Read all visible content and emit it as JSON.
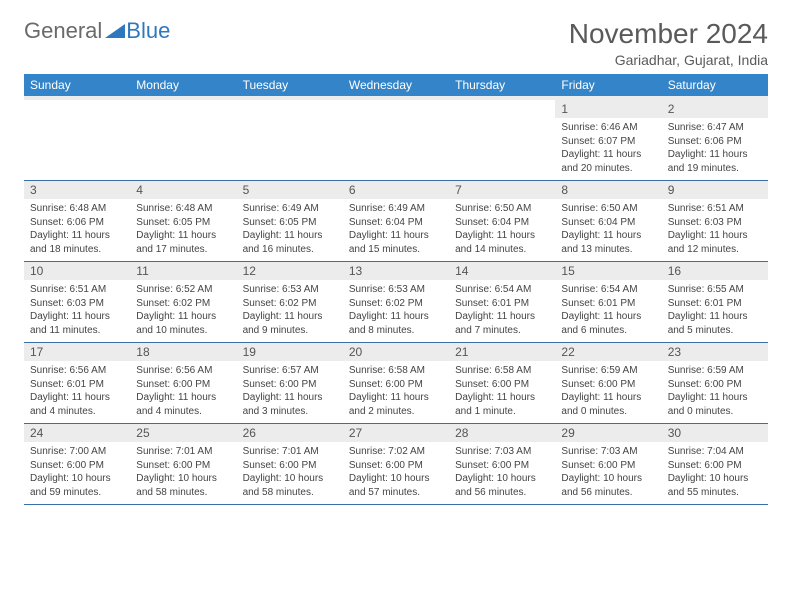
{
  "brand": {
    "part1": "General",
    "part2": "Blue"
  },
  "title": "November 2024",
  "location": "Gariadhar, Gujarat, India",
  "colors": {
    "header_bg": "#3384c8",
    "header_text": "#ffffff",
    "daynum_bg": "#ececec",
    "cell_border": "#3a6fa3",
    "text": "#444444",
    "title_text": "#5a5a5a",
    "logo_blue": "#2f78bd"
  },
  "fonts": {
    "title_pt": 28,
    "location_pt": 14,
    "dayhead_pt": 12,
    "cell_pt": 10
  },
  "day_headers": [
    "Sunday",
    "Monday",
    "Tuesday",
    "Wednesday",
    "Thursday",
    "Friday",
    "Saturday"
  ],
  "weeks": [
    [
      {
        "n": "",
        "sunrise": "",
        "sunset": "",
        "daylight": ""
      },
      {
        "n": "",
        "sunrise": "",
        "sunset": "",
        "daylight": ""
      },
      {
        "n": "",
        "sunrise": "",
        "sunset": "",
        "daylight": ""
      },
      {
        "n": "",
        "sunrise": "",
        "sunset": "",
        "daylight": ""
      },
      {
        "n": "",
        "sunrise": "",
        "sunset": "",
        "daylight": ""
      },
      {
        "n": "1",
        "sunrise": "Sunrise: 6:46 AM",
        "sunset": "Sunset: 6:07 PM",
        "daylight": "Daylight: 11 hours and 20 minutes."
      },
      {
        "n": "2",
        "sunrise": "Sunrise: 6:47 AM",
        "sunset": "Sunset: 6:06 PM",
        "daylight": "Daylight: 11 hours and 19 minutes."
      }
    ],
    [
      {
        "n": "3",
        "sunrise": "Sunrise: 6:48 AM",
        "sunset": "Sunset: 6:06 PM",
        "daylight": "Daylight: 11 hours and 18 minutes."
      },
      {
        "n": "4",
        "sunrise": "Sunrise: 6:48 AM",
        "sunset": "Sunset: 6:05 PM",
        "daylight": "Daylight: 11 hours and 17 minutes."
      },
      {
        "n": "5",
        "sunrise": "Sunrise: 6:49 AM",
        "sunset": "Sunset: 6:05 PM",
        "daylight": "Daylight: 11 hours and 16 minutes."
      },
      {
        "n": "6",
        "sunrise": "Sunrise: 6:49 AM",
        "sunset": "Sunset: 6:04 PM",
        "daylight": "Daylight: 11 hours and 15 minutes."
      },
      {
        "n": "7",
        "sunrise": "Sunrise: 6:50 AM",
        "sunset": "Sunset: 6:04 PM",
        "daylight": "Daylight: 11 hours and 14 minutes."
      },
      {
        "n": "8",
        "sunrise": "Sunrise: 6:50 AM",
        "sunset": "Sunset: 6:04 PM",
        "daylight": "Daylight: 11 hours and 13 minutes."
      },
      {
        "n": "9",
        "sunrise": "Sunrise: 6:51 AM",
        "sunset": "Sunset: 6:03 PM",
        "daylight": "Daylight: 11 hours and 12 minutes."
      }
    ],
    [
      {
        "n": "10",
        "sunrise": "Sunrise: 6:51 AM",
        "sunset": "Sunset: 6:03 PM",
        "daylight": "Daylight: 11 hours and 11 minutes."
      },
      {
        "n": "11",
        "sunrise": "Sunrise: 6:52 AM",
        "sunset": "Sunset: 6:02 PM",
        "daylight": "Daylight: 11 hours and 10 minutes."
      },
      {
        "n": "12",
        "sunrise": "Sunrise: 6:53 AM",
        "sunset": "Sunset: 6:02 PM",
        "daylight": "Daylight: 11 hours and 9 minutes."
      },
      {
        "n": "13",
        "sunrise": "Sunrise: 6:53 AM",
        "sunset": "Sunset: 6:02 PM",
        "daylight": "Daylight: 11 hours and 8 minutes."
      },
      {
        "n": "14",
        "sunrise": "Sunrise: 6:54 AM",
        "sunset": "Sunset: 6:01 PM",
        "daylight": "Daylight: 11 hours and 7 minutes."
      },
      {
        "n": "15",
        "sunrise": "Sunrise: 6:54 AM",
        "sunset": "Sunset: 6:01 PM",
        "daylight": "Daylight: 11 hours and 6 minutes."
      },
      {
        "n": "16",
        "sunrise": "Sunrise: 6:55 AM",
        "sunset": "Sunset: 6:01 PM",
        "daylight": "Daylight: 11 hours and 5 minutes."
      }
    ],
    [
      {
        "n": "17",
        "sunrise": "Sunrise: 6:56 AM",
        "sunset": "Sunset: 6:01 PM",
        "daylight": "Daylight: 11 hours and 4 minutes."
      },
      {
        "n": "18",
        "sunrise": "Sunrise: 6:56 AM",
        "sunset": "Sunset: 6:00 PM",
        "daylight": "Daylight: 11 hours and 4 minutes."
      },
      {
        "n": "19",
        "sunrise": "Sunrise: 6:57 AM",
        "sunset": "Sunset: 6:00 PM",
        "daylight": "Daylight: 11 hours and 3 minutes."
      },
      {
        "n": "20",
        "sunrise": "Sunrise: 6:58 AM",
        "sunset": "Sunset: 6:00 PM",
        "daylight": "Daylight: 11 hours and 2 minutes."
      },
      {
        "n": "21",
        "sunrise": "Sunrise: 6:58 AM",
        "sunset": "Sunset: 6:00 PM",
        "daylight": "Daylight: 11 hours and 1 minute."
      },
      {
        "n": "22",
        "sunrise": "Sunrise: 6:59 AM",
        "sunset": "Sunset: 6:00 PM",
        "daylight": "Daylight: 11 hours and 0 minutes."
      },
      {
        "n": "23",
        "sunrise": "Sunrise: 6:59 AM",
        "sunset": "Sunset: 6:00 PM",
        "daylight": "Daylight: 11 hours and 0 minutes."
      }
    ],
    [
      {
        "n": "24",
        "sunrise": "Sunrise: 7:00 AM",
        "sunset": "Sunset: 6:00 PM",
        "daylight": "Daylight: 10 hours and 59 minutes."
      },
      {
        "n": "25",
        "sunrise": "Sunrise: 7:01 AM",
        "sunset": "Sunset: 6:00 PM",
        "daylight": "Daylight: 10 hours and 58 minutes."
      },
      {
        "n": "26",
        "sunrise": "Sunrise: 7:01 AM",
        "sunset": "Sunset: 6:00 PM",
        "daylight": "Daylight: 10 hours and 58 minutes."
      },
      {
        "n": "27",
        "sunrise": "Sunrise: 7:02 AM",
        "sunset": "Sunset: 6:00 PM",
        "daylight": "Daylight: 10 hours and 57 minutes."
      },
      {
        "n": "28",
        "sunrise": "Sunrise: 7:03 AM",
        "sunset": "Sunset: 6:00 PM",
        "daylight": "Daylight: 10 hours and 56 minutes."
      },
      {
        "n": "29",
        "sunrise": "Sunrise: 7:03 AM",
        "sunset": "Sunset: 6:00 PM",
        "daylight": "Daylight: 10 hours and 56 minutes."
      },
      {
        "n": "30",
        "sunrise": "Sunrise: 7:04 AM",
        "sunset": "Sunset: 6:00 PM",
        "daylight": "Daylight: 10 hours and 55 minutes."
      }
    ]
  ]
}
